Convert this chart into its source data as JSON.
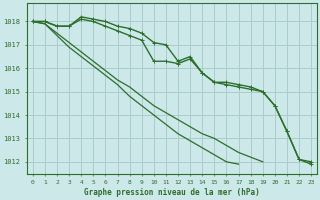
{
  "title": "Graphe pression niveau de la mer (hPa)",
  "xlim": [
    -0.5,
    23.5
  ],
  "ylim": [
    1011.5,
    1018.8
  ],
  "yticks": [
    1012,
    1013,
    1014,
    1015,
    1016,
    1017,
    1018
  ],
  "xticks": [
    0,
    1,
    2,
    3,
    4,
    5,
    6,
    7,
    8,
    9,
    10,
    11,
    12,
    13,
    14,
    15,
    16,
    17,
    18,
    19,
    20,
    21,
    22,
    23
  ],
  "background_color": "#cce8e8",
  "grid_color": "#aacccc",
  "line_color": "#2d6e2d",
  "series_with_markers": [
    {
      "y": [
        1018.0,
        1018.0,
        1017.8,
        1017.8,
        1018.2,
        1018.1,
        1018.0,
        1017.8,
        1017.7,
        1017.5,
        1017.1,
        1017.0,
        1016.3,
        1016.5,
        1015.8,
        1015.4,
        1015.4,
        1015.3,
        1015.2,
        1015.0,
        1014.4,
        1013.3,
        1012.1,
        1012.0
      ],
      "marker": true,
      "linewidth": 1.0
    },
    {
      "y": [
        1018.0,
        1018.0,
        1017.8,
        1017.8,
        1018.1,
        1018.0,
        1017.8,
        1017.6,
        1017.4,
        1017.2,
        1016.3,
        1016.3,
        1016.2,
        1016.4,
        1015.8,
        1015.4,
        1015.3,
        1015.2,
        1015.1,
        1015.0,
        1014.4,
        1013.3,
        1012.1,
        1011.9
      ],
      "marker": true,
      "linewidth": 1.0
    }
  ],
  "series_no_markers": [
    {
      "y": [
        1018.0,
        1017.9,
        1017.4,
        1016.9,
        1016.5,
        1016.1,
        1015.7,
        1015.3,
        1014.8,
        1014.4,
        1014.0,
        1013.6,
        1013.2,
        1012.9,
        1012.6,
        1012.3,
        1012.0,
        1011.9,
        null,
        null,
        null,
        null,
        null,
        null
      ],
      "linewidth": 0.9
    },
    {
      "y": [
        1018.0,
        1017.9,
        1017.5,
        1017.1,
        1016.7,
        1016.3,
        1015.9,
        1015.5,
        1015.2,
        1014.8,
        1014.4,
        1014.1,
        1013.8,
        1013.5,
        1013.2,
        1013.0,
        1012.7,
        1012.4,
        1012.2,
        1012.0,
        null,
        null,
        null,
        null
      ],
      "linewidth": 0.9
    }
  ]
}
